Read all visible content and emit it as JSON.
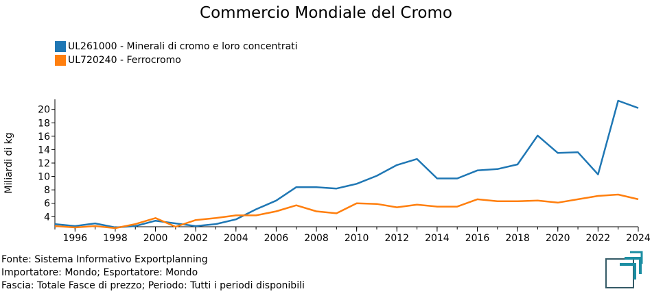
{
  "chart_data": {
    "type": "line",
    "title": "Commercio Mondiale del Cromo",
    "ylabel": "Miliardi di kg",
    "xlabel": "",
    "x": [
      1995,
      1996,
      1997,
      1998,
      1999,
      2000,
      2001,
      2002,
      2003,
      2004,
      2005,
      2006,
      2007,
      2008,
      2009,
      2010,
      2011,
      2012,
      2013,
      2014,
      2015,
      2016,
      2017,
      2018,
      2019,
      2020,
      2021,
      2022,
      2023,
      2024
    ],
    "xticks": [
      "1996",
      "1998",
      "2000",
      "2002",
      "2004",
      "2006",
      "2008",
      "2010",
      "2012",
      "2014",
      "2016",
      "2018",
      "2020",
      "2022",
      "2024"
    ],
    "yticks": [
      "4",
      "6",
      "8",
      "10",
      "12",
      "14",
      "16",
      "18",
      "20"
    ],
    "ylim": [
      2.5,
      21.5
    ],
    "xlim": [
      1995,
      2024
    ],
    "grid": false,
    "legend_position": "top-left",
    "series": [
      {
        "name": "UL261000 - Minerali di cromo e loro concentrati",
        "color": "#1f77b4",
        "values": [
          2.9,
          2.6,
          3.0,
          2.4,
          2.6,
          3.4,
          3.0,
          2.6,
          2.9,
          3.6,
          5.1,
          6.4,
          8.4,
          8.4,
          8.2,
          8.9,
          10.1,
          11.7,
          12.6,
          9.7,
          9.7,
          10.9,
          11.1,
          11.8,
          16.1,
          13.5,
          13.6,
          10.3,
          21.3,
          20.2
        ]
      },
      {
        "name": "UL720240 - Ferrocromo",
        "color": "#ff7f0e",
        "values": [
          2.6,
          2.4,
          2.6,
          2.3,
          2.9,
          3.8,
          2.5,
          3.5,
          3.8,
          4.2,
          4.2,
          4.8,
          5.7,
          4.8,
          4.5,
          6.0,
          5.9,
          5.4,
          5.8,
          5.5,
          5.5,
          6.6,
          6.3,
          6.3,
          6.4,
          6.1,
          6.6,
          7.1,
          7.3,
          6.6
        ]
      }
    ]
  },
  "footer": {
    "line1": "Fonte: Sistema Informativo Exportplanning",
    "line2": "Importatore: Mondo; Esportatore: Mondo",
    "line3": "Fascia: Totale Fasce di prezzo; Periodo: Tutti i periodi disponibili"
  },
  "logo_color": "#1b8ea3"
}
